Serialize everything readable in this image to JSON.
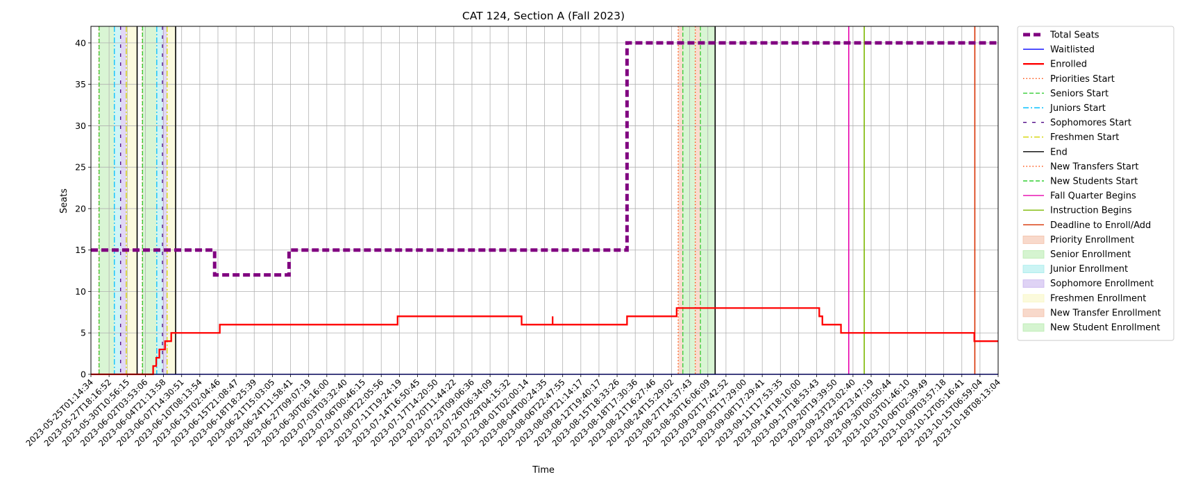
{
  "chart_data": {
    "type": "line",
    "title": "CAT 124, Section A (Fall 2023)",
    "xlabel": "Time",
    "ylabel": "Seats",
    "ylim": [
      0,
      42
    ],
    "yticks": [
      0,
      5,
      10,
      15,
      20,
      25,
      30,
      35,
      40
    ],
    "xlim": [
      "2023-05-25T01:14:34",
      "2023-10-18T08:13:04"
    ],
    "grid": true,
    "legend_position": "outside-right",
    "xtick_labels": [
      "2023-05-25T01:14:34",
      "2023-05-27T18:16:52",
      "2023-05-30T10:56:15",
      "2023-06-02T03:53:06",
      "2023-06-04T21:13:58",
      "2023-06-07T14:30:51",
      "2023-06-10T08:13:54",
      "2023-06-13T02:04:46",
      "2023-06-15T21:08:47",
      "2023-06-18T18:25:39",
      "2023-06-21T15:03:05",
      "2023-06-24T11:58:41",
      "2023-06-27T09:07:19",
      "2023-06-30T06:16:00",
      "2023-07-03T03:32:40",
      "2023-07-06T00:46:15",
      "2023-07-08T22:05:56",
      "2023-07-11T19:24:19",
      "2023-07-14T16:50:45",
      "2023-07-17T14:20:50",
      "2023-07-20T11:44:22",
      "2023-07-23T09:06:36",
      "2023-07-26T06:34:09",
      "2023-07-29T04:15:32",
      "2023-08-01T02:00:14",
      "2023-08-04T00:24:35",
      "2023-08-06T22:47:55",
      "2023-08-09T21:14:17",
      "2023-08-12T19:40:17",
      "2023-08-15T18:33:26",
      "2023-08-18T17:30:36",
      "2023-08-21T16:27:46",
      "2023-08-24T15:29:02",
      "2023-08-27T14:37:43",
      "2023-08-30T16:06:09",
      "2023-09-02T17:42:52",
      "2023-09-05T17:29:00",
      "2023-09-08T17:29:41",
      "2023-09-11T17:53:35",
      "2023-09-14T18:10:00",
      "2023-09-17T18:53:43",
      "2023-09-20T19:39:50",
      "2023-09-23T23:02:40",
      "2023-09-26T23:47:19",
      "2023-09-30T00:50:44",
      "2023-10-03T01:46:10",
      "2023-10-06T02:39:49",
      "2023-10-09T03:57:18",
      "2023-10-12T05:16:41",
      "2023-10-15T06:59:04",
      "2023-10-18T08:13:04"
    ],
    "series": [
      {
        "name": "Total Seats",
        "color": "#800080",
        "style": "dashed-thick",
        "points": [
          [
            "2023-05-25T01:14:34",
            15
          ],
          [
            "2023-06-14T00:00:00",
            15
          ],
          [
            "2023-06-14T00:00:00",
            12
          ],
          [
            "2023-06-26T00:00:00",
            12
          ],
          [
            "2023-06-26T00:00:00",
            15
          ],
          [
            "2023-08-19T12:00:00",
            15
          ],
          [
            "2023-08-19T12:00:00",
            40
          ],
          [
            "2023-10-18T08:13:04",
            40
          ]
        ]
      },
      {
        "name": "Waitlisted",
        "color": "#0000ff",
        "style": "solid",
        "points": [
          [
            "2023-05-25T01:14:34",
            0
          ],
          [
            "2023-10-18T08:13:04",
            0
          ]
        ]
      },
      {
        "name": "Enrolled",
        "color": "#ff0000",
        "style": "solid-step",
        "points": [
          [
            "2023-05-25T01:14:34",
            0
          ],
          [
            "2023-06-04T02:00:00",
            0
          ],
          [
            "2023-06-04T02:00:00",
            1
          ],
          [
            "2023-06-04T14:00:00",
            1
          ],
          [
            "2023-06-04T14:00:00",
            2
          ],
          [
            "2023-06-05T02:00:00",
            2
          ],
          [
            "2023-06-05T02:00:00",
            3
          ],
          [
            "2023-06-06T00:00:00",
            3
          ],
          [
            "2023-06-06T00:00:00",
            4
          ],
          [
            "2023-06-07T00:00:00",
            4
          ],
          [
            "2023-06-07T00:00:00",
            5
          ],
          [
            "2023-06-14T20:00:00",
            5
          ],
          [
            "2023-06-14T20:00:00",
            6
          ],
          [
            "2023-07-13T12:00:00",
            6
          ],
          [
            "2023-07-13T12:00:00",
            7
          ],
          [
            "2023-08-02T12:00:00",
            7
          ],
          [
            "2023-08-02T12:00:00",
            6
          ],
          [
            "2023-08-07T12:00:00",
            6
          ],
          [
            "2023-08-07T12:00:00",
            7
          ],
          [
            "2023-08-07T12:00:00",
            6
          ],
          [
            "2023-08-19T12:00:00",
            6
          ],
          [
            "2023-08-19T12:00:00",
            7
          ],
          [
            "2023-08-27T12:00:00",
            7
          ],
          [
            "2023-08-27T12:00:00",
            8
          ],
          [
            "2023-09-19T12:00:00",
            8
          ],
          [
            "2023-09-19T12:00:00",
            7
          ],
          [
            "2023-09-20T00:00:00",
            7
          ],
          [
            "2023-09-20T00:00:00",
            6
          ],
          [
            "2023-09-23T00:00:00",
            6
          ],
          [
            "2023-09-23T00:00:00",
            5
          ],
          [
            "2023-10-14T12:00:00",
            5
          ],
          [
            "2023-10-14T12:00:00",
            4
          ],
          [
            "2023-10-18T08:13:04",
            4
          ]
        ]
      }
    ],
    "vertical_lines": [
      {
        "name": "Priorities Start",
        "color": "#ff4500",
        "style": "dotted",
        "x": [
          "2023-05-26T08:00:00",
          "2023-06-02T08:00:00"
        ]
      },
      {
        "name": "Seniors Start",
        "color": "#32cd32",
        "style": "dashed",
        "x": [
          "2023-05-26T09:00:00",
          "2023-06-02T09:00:00"
        ]
      },
      {
        "name": "Juniors Start",
        "color": "#00bfff",
        "style": "dashdot",
        "x": [
          "2023-05-28T20:00:00",
          "2023-06-04T16:00:00"
        ]
      },
      {
        "name": "Sophomores Start",
        "color": "#4b0082",
        "style": "loosely-dashed",
        "x": [
          "2023-05-29T20:00:00",
          "2023-06-05T14:00:00"
        ]
      },
      {
        "name": "Freshmen Start",
        "color": "#d4d400",
        "style": "dashdot",
        "x": [
          "2023-05-30T18:00:00",
          "2023-06-06T08:00:00"
        ]
      },
      {
        "name": "End",
        "color": "#000000",
        "style": "solid",
        "x": [
          "2023-06-01T12:00:00",
          "2023-06-07T17:00:00",
          "2023-09-02T17:00:00"
        ]
      },
      {
        "name": "New Transfers Start",
        "color": "#ff4500",
        "style": "dotted",
        "x": [
          "2023-08-27T18:00:00",
          "2023-08-30T12:00:00"
        ]
      },
      {
        "name": "New Students Start",
        "color": "#32cd32",
        "style": "dashed",
        "x": [
          "2023-08-28T12:00:00",
          "2023-08-31T08:00:00"
        ]
      },
      {
        "name": "Fall Quarter Begins",
        "color": "#e600ac",
        "style": "solid",
        "x": [
          "2023-09-24T06:00:00"
        ]
      },
      {
        "name": "Instruction Begins",
        "color": "#7cb800",
        "style": "solid",
        "x": [
          "2023-09-26T18:00:00"
        ]
      },
      {
        "name": "Deadline to Enroll/Add",
        "color": "#d83000",
        "style": "solid",
        "x": [
          "2023-10-14T14:00:00"
        ]
      }
    ],
    "spans": [
      {
        "name": "Priority Enrollment",
        "color": "#f4c0a8",
        "ranges": [
          [
            "2023-05-26T08:00:00",
            "2023-05-26T09:00:00"
          ],
          [
            "2023-06-02T08:00:00",
            "2023-06-02T09:00:00"
          ]
        ]
      },
      {
        "name": "Senior Enrollment",
        "color": "#b9ecb0",
        "ranges": [
          [
            "2023-05-26T09:00:00",
            "2023-05-28T20:00:00"
          ],
          [
            "2023-06-02T09:00:00",
            "2023-06-04T16:00:00"
          ]
        ]
      },
      {
        "name": "Junior Enrollment",
        "color": "#a8ecec",
        "ranges": [
          [
            "2023-05-28T20:00:00",
            "2023-05-29T20:00:00"
          ],
          [
            "2023-06-04T16:00:00",
            "2023-06-05T14:00:00"
          ]
        ]
      },
      {
        "name": "Sophomore Enrollment",
        "color": "#c9b5ee",
        "ranges": [
          [
            "2023-05-29T20:00:00",
            "2023-05-30T18:00:00"
          ],
          [
            "2023-06-05T14:00:00",
            "2023-06-06T08:00:00"
          ]
        ]
      },
      {
        "name": "Freshmen Enrollment",
        "color": "#f8f6c4",
        "ranges": [
          [
            "2023-05-30T18:00:00",
            "2023-06-01T12:00:00"
          ],
          [
            "2023-06-06T08:00:00",
            "2023-06-07T17:00:00"
          ]
        ]
      },
      {
        "name": "New Transfer Enrollment",
        "color": "#f4c0a8",
        "ranges": [
          [
            "2023-08-27T18:00:00",
            "2023-08-28T12:00:00"
          ],
          [
            "2023-08-30T12:00:00",
            "2023-08-31T08:00:00"
          ]
        ]
      },
      {
        "name": "New Student Enrollment",
        "color": "#b9ecb0",
        "ranges": [
          [
            "2023-08-28T12:00:00",
            "2023-08-30T12:00:00"
          ],
          [
            "2023-08-31T08:00:00",
            "2023-09-02T17:00:00"
          ]
        ]
      }
    ],
    "legend": [
      {
        "label": "Total Seats",
        "kind": "line",
        "color": "#800080",
        "style": "dashed-thick"
      },
      {
        "label": "Waitlisted",
        "kind": "line",
        "color": "#0000ff",
        "style": "solid"
      },
      {
        "label": "Enrolled",
        "kind": "line",
        "color": "#ff0000",
        "style": "solid-thick"
      },
      {
        "label": "Priorities Start",
        "kind": "line",
        "color": "#ff4500",
        "style": "dotted"
      },
      {
        "label": "Seniors Start",
        "kind": "line",
        "color": "#32cd32",
        "style": "dashed"
      },
      {
        "label": "Juniors Start",
        "kind": "line",
        "color": "#00bfff",
        "style": "dashdot"
      },
      {
        "label": "Sophomores Start",
        "kind": "line",
        "color": "#4b0082",
        "style": "loosely-dashed"
      },
      {
        "label": "Freshmen Start",
        "kind": "line",
        "color": "#d4d400",
        "style": "dashdot"
      },
      {
        "label": "End",
        "kind": "line",
        "color": "#000000",
        "style": "solid"
      },
      {
        "label": "New Transfers Start",
        "kind": "line",
        "color": "#ff4500",
        "style": "dotted"
      },
      {
        "label": "New Students Start",
        "kind": "line",
        "color": "#32cd32",
        "style": "dashed"
      },
      {
        "label": "Fall Quarter Begins",
        "kind": "line",
        "color": "#e600ac",
        "style": "solid"
      },
      {
        "label": "Instruction Begins",
        "kind": "line",
        "color": "#7cb800",
        "style": "solid"
      },
      {
        "label": "Deadline to Enroll/Add",
        "kind": "line",
        "color": "#d83000",
        "style": "solid"
      },
      {
        "label": "Priority Enrollment",
        "kind": "patch",
        "color": "#f4c0a8"
      },
      {
        "label": "Senior Enrollment",
        "kind": "patch",
        "color": "#b9ecb0"
      },
      {
        "label": "Junior Enrollment",
        "kind": "patch",
        "color": "#a8ecec"
      },
      {
        "label": "Sophomore Enrollment",
        "kind": "patch",
        "color": "#c9b5ee"
      },
      {
        "label": "Freshmen Enrollment",
        "kind": "patch",
        "color": "#f8f6c4"
      },
      {
        "label": "New Transfer Enrollment",
        "kind": "patch",
        "color": "#f4c0a8"
      },
      {
        "label": "New Student Enrollment",
        "kind": "patch",
        "color": "#b9ecb0"
      }
    ]
  }
}
